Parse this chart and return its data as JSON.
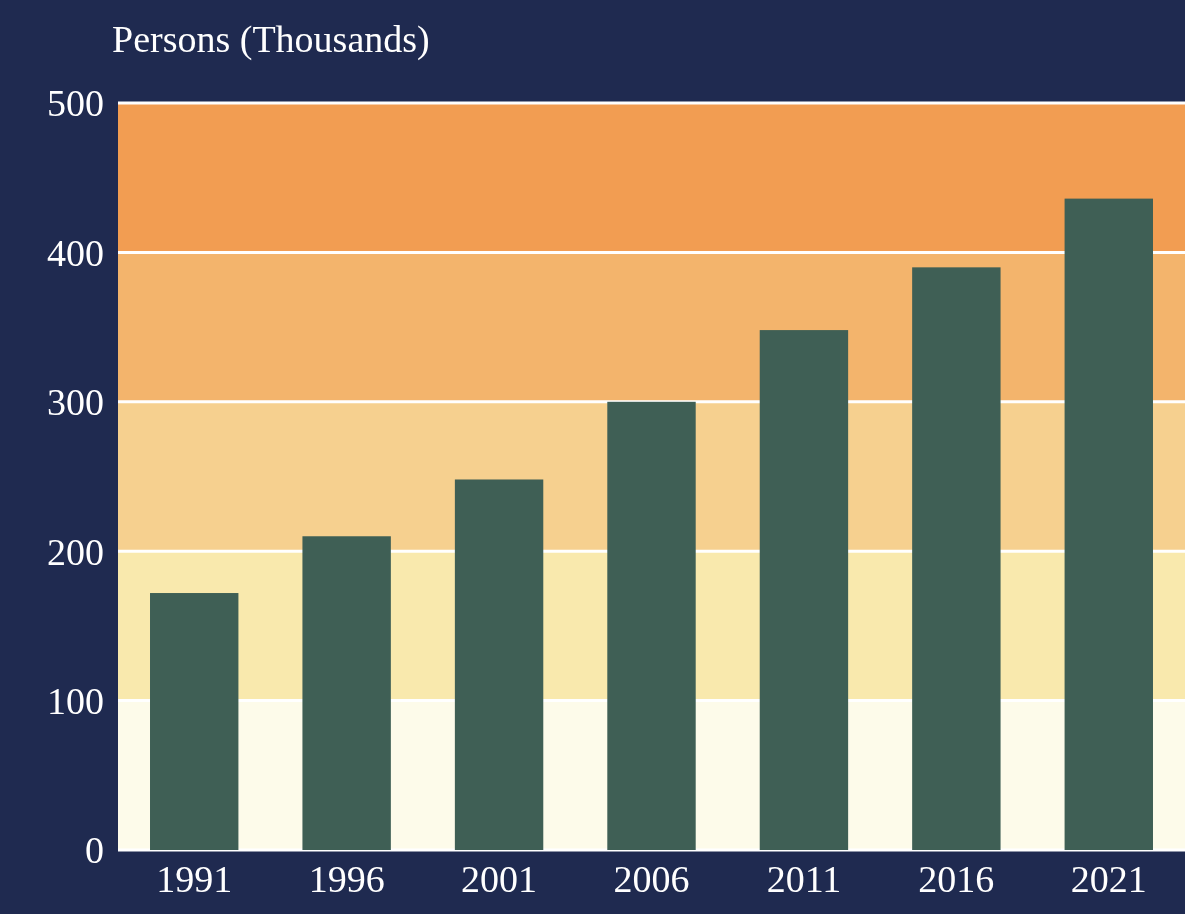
{
  "chart_data": {
    "type": "bar",
    "ylabel": "Persons (Thousands)",
    "categories": [
      "1991",
      "1996",
      "2001",
      "2006",
      "2011",
      "2016",
      "2021"
    ],
    "values": [
      172,
      210,
      248,
      300,
      348,
      390,
      436
    ],
    "color": "#3f5f55",
    "ylim": [
      0,
      500
    ],
    "yticks": [
      0,
      100,
      200,
      300,
      400,
      500
    ],
    "grid": "y",
    "bands": [
      {
        "axis": "y",
        "from": 0,
        "to": 100,
        "color": "#fdfbea"
      },
      {
        "axis": "y",
        "from": 100,
        "to": 200,
        "color": "#f9e9ad"
      },
      {
        "axis": "y",
        "from": 200,
        "to": 300,
        "color": "#f6d08f"
      },
      {
        "axis": "y",
        "from": 300,
        "to": 400,
        "color": "#f3b46c"
      },
      {
        "axis": "y",
        "from": 400,
        "to": 500,
        "color": "#f29d52"
      }
    ]
  }
}
